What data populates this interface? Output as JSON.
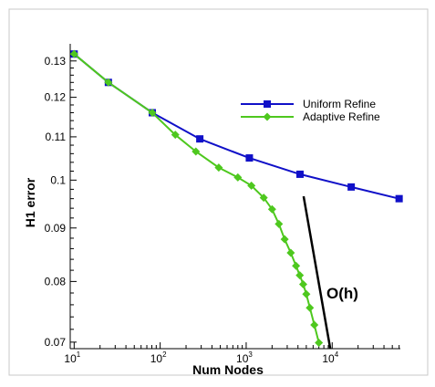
{
  "chart_data": {
    "type": "line",
    "xlabel": "Num Nodes",
    "ylabel": "H1 error",
    "x_scale": "log",
    "y_scale": "log",
    "xlim": [
      9,
      62000
    ],
    "ylim": [
      0.069,
      0.135
    ],
    "x_ticks": [
      {
        "value": 10,
        "base": "10",
        "exp": "1"
      },
      {
        "value": 100,
        "base": "10",
        "exp": "2"
      },
      {
        "value": 1000,
        "base": "10",
        "exp": "3"
      },
      {
        "value": 10000,
        "base": "10",
        "exp": "4"
      }
    ],
    "y_ticks": [
      {
        "value": 0.07,
        "label": "0.07"
      },
      {
        "value": 0.08,
        "label": "0.08"
      },
      {
        "value": 0.09,
        "label": "0.09"
      },
      {
        "value": 0.1,
        "label": "0.1"
      },
      {
        "value": 0.11,
        "label": "0.11"
      },
      {
        "value": 0.12,
        "label": "0.12"
      },
      {
        "value": 0.13,
        "label": "0.13"
      }
    ],
    "grid": false,
    "legend_position": "top-right",
    "series": [
      {
        "name": "Uniform Refine",
        "color": "#1010c8",
        "marker": "square",
        "x": [
          10,
          25,
          81,
          289,
          1089,
          4225,
          16641,
          60000
        ],
        "y": [
          0.132,
          0.124,
          0.116,
          0.1095,
          0.105,
          0.1013,
          0.0985,
          0.096
        ]
      },
      {
        "name": "Adaptive Refine",
        "color": "#4ec81e",
        "marker": "diamond",
        "x": [
          10,
          25,
          81,
          150,
          260,
          480,
          800,
          1150,
          1600,
          2000,
          2400,
          2800,
          3300,
          3800,
          4200,
          4600,
          5000,
          5500,
          6200,
          7000
        ],
        "y": [
          0.132,
          0.124,
          0.116,
          0.1105,
          0.1065,
          0.1028,
          0.1006,
          0.0988,
          0.0962,
          0.0938,
          0.0908,
          0.0878,
          0.0852,
          0.0828,
          0.0811,
          0.0795,
          0.0778,
          0.0755,
          0.0727,
          0.0699
        ]
      }
    ],
    "reference_line": {
      "label": "O(h)",
      "color": "#000000",
      "x": [
        4650,
        9500
      ],
      "y": [
        0.0965,
        0.069
      ]
    }
  }
}
